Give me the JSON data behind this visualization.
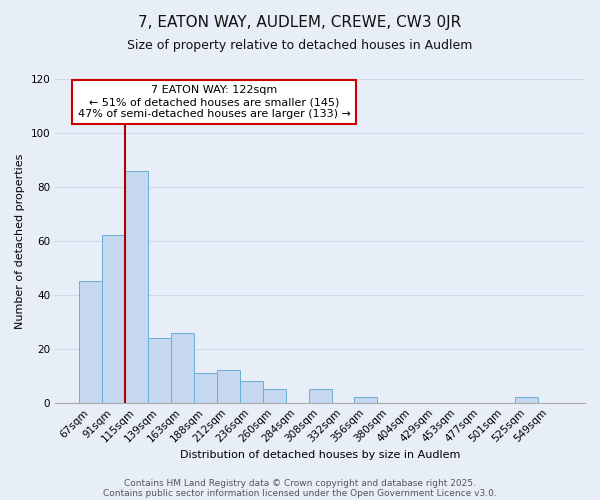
{
  "title": "7, EATON WAY, AUDLEM, CREWE, CW3 0JR",
  "subtitle": "Size of property relative to detached houses in Audlem",
  "xlabel": "Distribution of detached houses by size in Audlem",
  "ylabel": "Number of detached properties",
  "bar_labels": [
    "67sqm",
    "91sqm",
    "115sqm",
    "139sqm",
    "163sqm",
    "188sqm",
    "212sqm",
    "236sqm",
    "260sqm",
    "284sqm",
    "308sqm",
    "332sqm",
    "356sqm",
    "380sqm",
    "404sqm",
    "429sqm",
    "453sqm",
    "477sqm",
    "501sqm",
    "525sqm",
    "549sqm"
  ],
  "bar_values": [
    45,
    62,
    86,
    24,
    26,
    11,
    12,
    8,
    5,
    0,
    5,
    0,
    2,
    0,
    0,
    0,
    0,
    0,
    0,
    2,
    0
  ],
  "bar_color": "#c5d8f0",
  "bar_edgecolor": "#6baed6",
  "vline_x": 1.5,
  "vline_color": "#aa0000",
  "annotation_title": "7 EATON WAY: 122sqm",
  "annotation_line1": "← 51% of detached houses are smaller (145)",
  "annotation_line2": "47% of semi-detached houses are larger (133) →",
  "annotation_box_facecolor": "#ffffff",
  "annotation_box_edgecolor": "#cc0000",
  "ylim": [
    0,
    120
  ],
  "yticks": [
    0,
    20,
    40,
    60,
    80,
    100,
    120
  ],
  "footer1": "Contains HM Land Registry data © Crown copyright and database right 2025.",
  "footer2": "Contains public sector information licensed under the Open Government Licence v3.0.",
  "bg_color": "#e8eef8",
  "title_fontsize": 11,
  "subtitle_fontsize": 9,
  "axis_label_fontsize": 8,
  "tick_fontsize": 7.5,
  "annotation_fontsize": 8,
  "footer_fontsize": 6.5,
  "grid_color": "#d0d8e8"
}
